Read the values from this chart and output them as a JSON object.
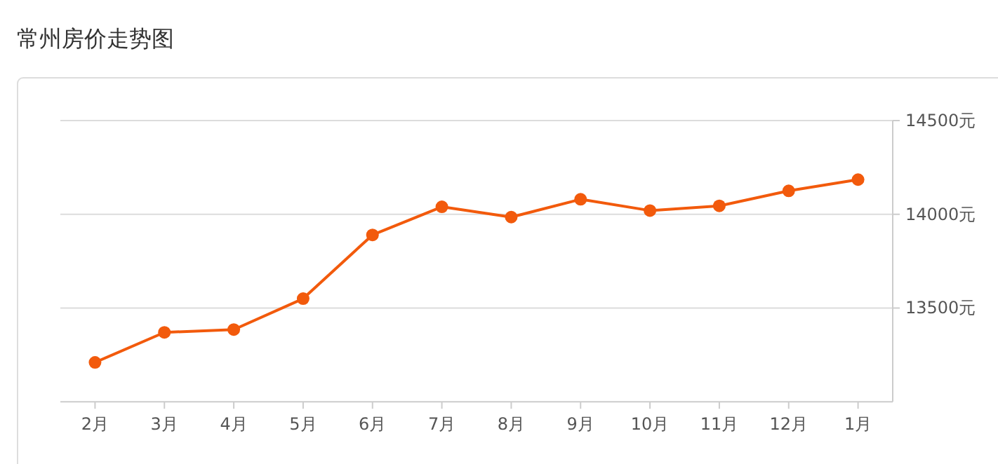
{
  "chart_data": {
    "type": "line",
    "title": "常州房价走势图",
    "categories": [
      "2月",
      "3月",
      "4月",
      "5月",
      "6月",
      "7月",
      "8月",
      "9月",
      "10月",
      "11月",
      "12月",
      "1月"
    ],
    "series": [
      {
        "color": "#f25a0c",
        "values": [
          13210,
          13370,
          13385,
          13550,
          13890,
          14040,
          13985,
          14080,
          14020,
          14045,
          14125,
          14185
        ]
      }
    ],
    "ylim": [
      13000,
      14500
    ],
    "yticks": [
      {
        "value": 13500,
        "label": "13500元"
      },
      {
        "value": 14000,
        "label": "14000元"
      },
      {
        "value": 14500,
        "label": "14500元"
      }
    ],
    "grid": "y",
    "marker": "circle",
    "line_style": "solid"
  }
}
